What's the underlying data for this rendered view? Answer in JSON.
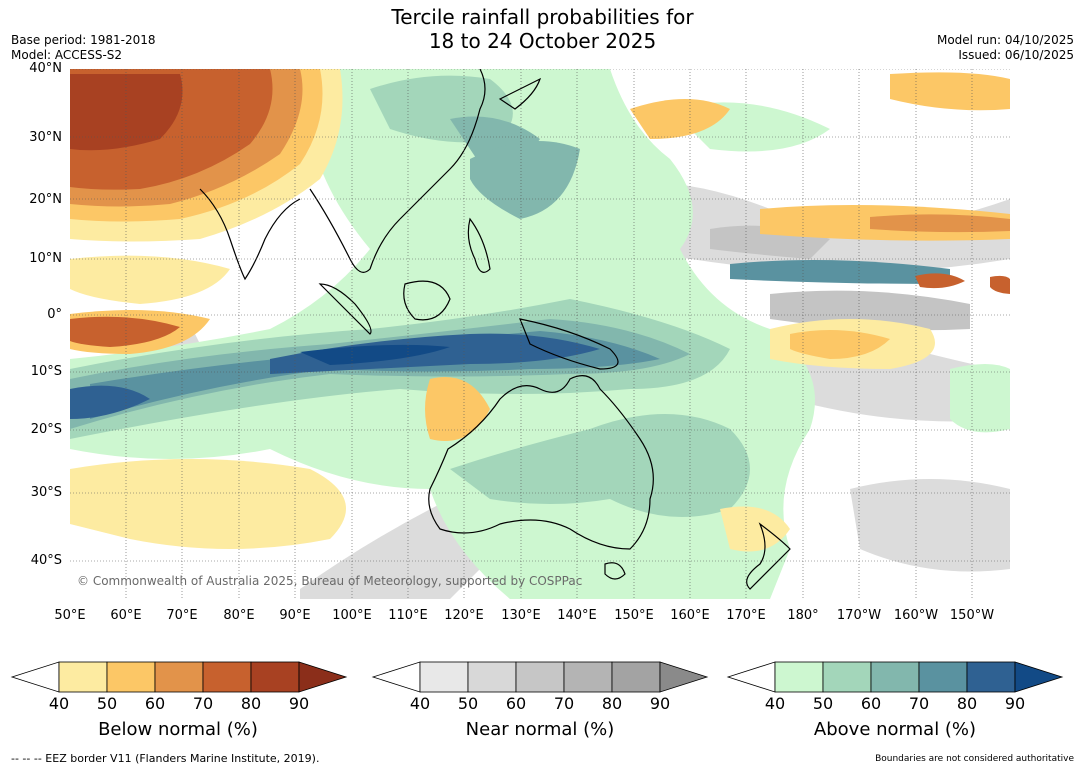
{
  "title_line1": "Tercile rainfall probabilities for",
  "title_line2": "18 to 24 October 2025",
  "base_period": "Base period: 1981-2018",
  "model": "Model: ACCESS-S2",
  "model_run": "Model run: 04/10/2025",
  "issued": "Issued: 06/10/2025",
  "copyright": "© Commonwealth of Australia 2025, Bureau of Meteorology, supported by COSPPac",
  "lat_labels": [
    "40°N",
    "30°N",
    "20°N",
    "10°N",
    "0°",
    "10°S",
    "20°S",
    "30°S",
    "40°S"
  ],
  "lon_labels": [
    "50°E",
    "60°E",
    "70°E",
    "80°E",
    "90°E",
    "100°E",
    "110°E",
    "120°E",
    "130°E",
    "140°E",
    "150°E",
    "160°E",
    "170°E",
    "180°",
    "170°W",
    "160°W",
    "150°W"
  ],
  "legend": {
    "below": {
      "label": "Below normal (%)",
      "ticks": [
        "40",
        "50",
        "60",
        "70",
        "80",
        "90"
      ],
      "colors": [
        "#ffffff",
        "#fdeba1",
        "#fcc766",
        "#e2934a",
        "#c7612e",
        "#a84122",
        "#8b2e1a"
      ]
    },
    "near": {
      "label": "Near normal (%)",
      "ticks": [
        "40",
        "50",
        "60",
        "70",
        "80",
        "90"
      ],
      "colors": [
        "#ffffff",
        "#e8e8e8",
        "#d8d8d8",
        "#c6c6c6",
        "#b4b4b4",
        "#a3a3a3",
        "#8a8a8a"
      ]
    },
    "above": {
      "label": "Above normal (%)",
      "ticks": [
        "40",
        "50",
        "60",
        "70",
        "80",
        "90"
      ],
      "colors": [
        "#ffffff",
        "#cdf7d0",
        "#a3d6ba",
        "#82b7ad",
        "#5a92a0",
        "#2f6192",
        "#124a86"
      ]
    }
  },
  "eez_note": "--  --  -- EEZ border V11 (Flanders Marine Institute, 2019).",
  "boundary_note": "Boundaries are not considered authoritative"
}
